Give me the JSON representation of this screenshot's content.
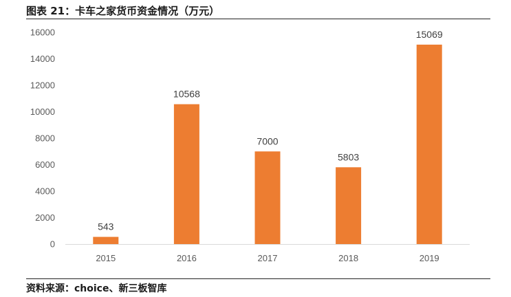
{
  "header": {
    "title": "图表 21：卡车之家货币资金情况（万元）"
  },
  "footer": {
    "source": "资料来源：choice、新三板智库"
  },
  "chart_data": {
    "type": "bar",
    "title": "图表 21：卡车之家货币资金情况（万元）",
    "xlabel": "",
    "ylabel": "",
    "categories": [
      "2015",
      "2016",
      "2017",
      "2018",
      "2019"
    ],
    "series": [
      {
        "values": [
          543,
          10568,
          7000,
          5803,
          15069
        ]
      }
    ],
    "data_labels": [
      "543",
      "10568",
      "7000",
      "5803",
      "15069"
    ],
    "ylim": [
      0,
      16000
    ],
    "yticks": [
      0,
      2000,
      4000,
      6000,
      8000,
      10000,
      12000,
      14000,
      16000
    ],
    "ytick_labels": [
      "0",
      "2000",
      "4000",
      "6000",
      "8000",
      "10000",
      "12000",
      "14000",
      "16000"
    ],
    "grid": false,
    "legend": "none",
    "bar_color": "#ED7D31"
  }
}
